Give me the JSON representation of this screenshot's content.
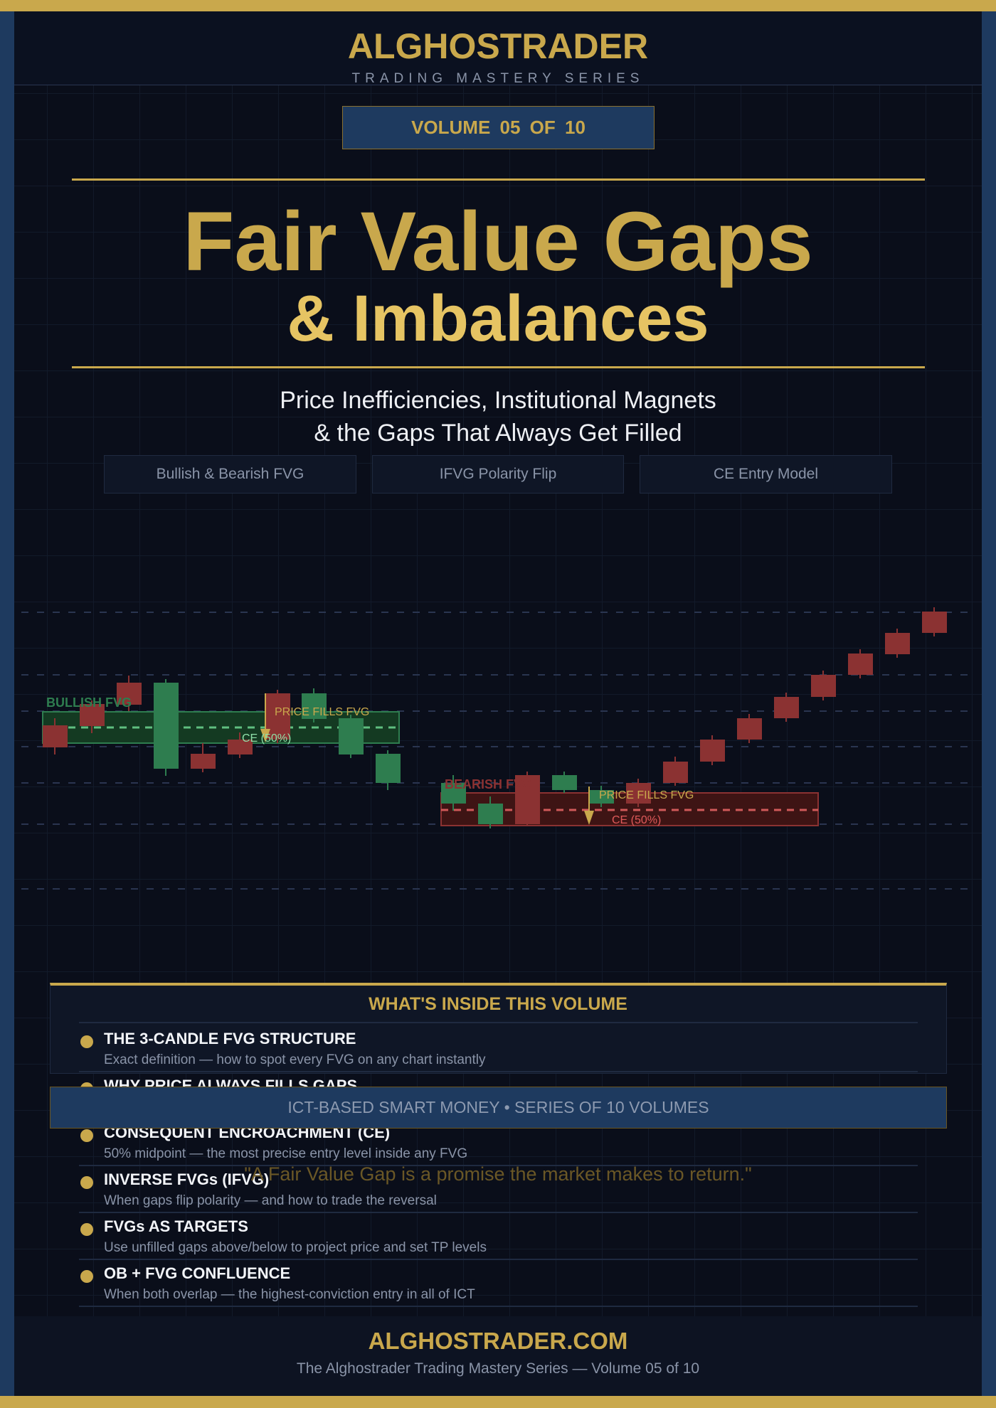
{
  "header": {
    "brand": "ALGHOSTRADER",
    "series": "TRADING MASTERY SERIES"
  },
  "volume_badge": "VOLUME  05  OF  10",
  "title": {
    "line1": "Fair Value Gaps",
    "line2": "& Imbalances"
  },
  "subtitle": {
    "line1": "Price Inefficiencies, Institutional Magnets",
    "line2": "& the Gaps That Always Get Filled"
  },
  "tags": [
    "Bullish & Bearish FVG",
    "IFVG Polarity Flip",
    "CE Entry Model"
  ],
  "illustration": {
    "bullish_label": "BULLISH FVG",
    "bearish_label": "BEARISH FVG",
    "fill_label": "PRICE FILLS FVG",
    "ce_label": "CE (50%)",
    "colors": {
      "bull": "#2e7d4f",
      "bear": "#8b3232",
      "gold": "#c9a84c"
    }
  },
  "contents": {
    "title": "WHAT'S INSIDE THIS VOLUME",
    "items": [
      {
        "title": "THE 3-CANDLE FVG STRUCTURE",
        "desc": "Exact definition — how to spot every FVG on any chart instantly"
      },
      {
        "title": "WHY PRICE ALWAYS FILLS GAPS",
        "desc": ""
      },
      {
        "title": "CONSEQUENT ENCROACHMENT (CE)",
        "desc": "50% midpoint — the most precise entry level inside any FVG"
      },
      {
        "title": "INVERSE FVGs (IFVG)",
        "desc": "When gaps flip polarity — and how to trade the reversal"
      },
      {
        "title": "FVGs AS TARGETS",
        "desc": "Use unfilled gaps above/below to project price and set TP levels"
      },
      {
        "title": "OB + FVG CONFLUENCE",
        "desc": "When both overlap — the highest-conviction entry in all of ICT"
      }
    ]
  },
  "banner": "ICT-BASED  SMART MONEY  •  SERIES OF 10 VOLUMES",
  "quote": "\"A Fair Value Gap is a promise the market makes to return.\"",
  "footer": {
    "site": "ALGHOSTRADER.COM",
    "tagline": "The Alghostrader Trading Mastery Series  —  Volume 05 of 10"
  },
  "colors": {
    "gold": "#c9a84c",
    "navy": "#1e3a5f",
    "background": "#0a0e1a"
  }
}
